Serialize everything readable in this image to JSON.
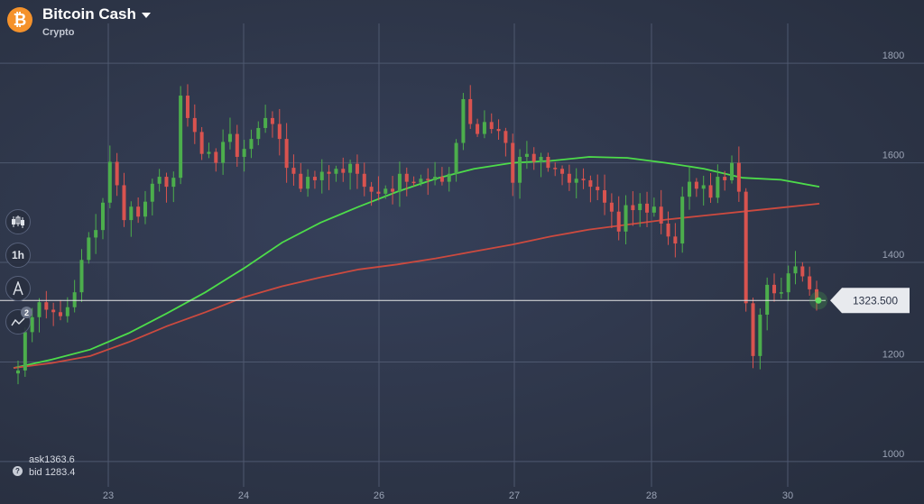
{
  "header": {
    "asset_name": "Bitcoin Cash",
    "asset_category": "Crypto",
    "logo_glyph": "₿",
    "logo_color": "#f5922b"
  },
  "toolbar": {
    "chart_type_icon": "candles-icon",
    "timeframe_label": "1h",
    "drawing_icon": "drawing-tools-icon",
    "indicators_icon": "indicators-icon",
    "indicators_count": "2"
  },
  "quotes": {
    "ask": "ask1363.6",
    "bid": "bid 1283.4"
  },
  "price_tag": "1323.500",
  "chart_data": {
    "type": "candlestick",
    "x_labels": [
      "23",
      "24",
      "26",
      "27",
      "28",
      "30"
    ],
    "y_labels": [
      "1000",
      "1200",
      "1400",
      "1600",
      "1800"
    ],
    "ylim": [
      960,
      1880
    ],
    "current_price": 1323.5,
    "grid": true,
    "colors": {
      "up": "#4cae4c",
      "down": "#d9534f",
      "ma_fast": "#4ddc4a",
      "ma_slow": "#cc4a3f",
      "grid": "#4e586f",
      "price_line": "#e6e6e6"
    },
    "series": [
      {
        "type": "candles",
        "values": [
          1183,
          1260,
          1290,
          1320,
          1305,
          1300,
          1292,
          1310,
          1340,
          1405,
          1450,
          1465,
          1520,
          1602,
          1555,
          1485,
          1512,
          1492,
          1522,
          1558,
          1572,
          1552,
          1570,
          1735,
          1690,
          1662,
          1618,
          1622,
          1600,
          1642,
          1658,
          1612,
          1628,
          1648,
          1670,
          1690,
          1678,
          1648,
          1590,
          1578,
          1548,
          1572,
          1565,
          1582,
          1578,
          1588,
          1580,
          1598,
          1578,
          1552,
          1542,
          1538,
          1548,
          1542,
          1578,
          1562,
          1560,
          1568,
          1565,
          1572,
          1562,
          1578,
          1640,
          1728,
          1678,
          1658,
          1682,
          1668,
          1664,
          1640,
          1560,
          1612,
          1618,
          1602,
          1612,
          1590,
          1588,
          1578,
          1560,
          1568,
          1565,
          1552,
          1545,
          1520,
          1502,
          1462,
          1515,
          1505,
          1518,
          1500,
          1512,
          1478,
          1452,
          1438,
          1532,
          1562,
          1548,
          1555,
          1530,
          1572,
          1565,
          1600,
          1542,
          1318,
          1212,
          1295,
          1355,
          1338,
          1340,
          1378,
          1392,
          1372,
          1346,
          1323.5
        ]
      },
      {
        "type": "line",
        "name": "",
        "values": [
          1188,
          1205,
          1225,
          1258,
          1298,
          1340,
          1388,
          1440,
          1480,
          1512,
          1542,
          1568,
          1588,
          1600,
          1604,
          1612,
          1610,
          1600,
          1588,
          1570,
          1566,
          1552
        ]
      },
      {
        "type": "line",
        "name": "",
        "values": [
          1188,
          1198,
          1212,
          1240,
          1272,
          1300,
          1330,
          1352,
          1370,
          1386,
          1396,
          1408,
          1422,
          1436,
          1452,
          1466,
          1476,
          1486,
          1494,
          1502,
          1510,
          1518
        ]
      }
    ]
  }
}
